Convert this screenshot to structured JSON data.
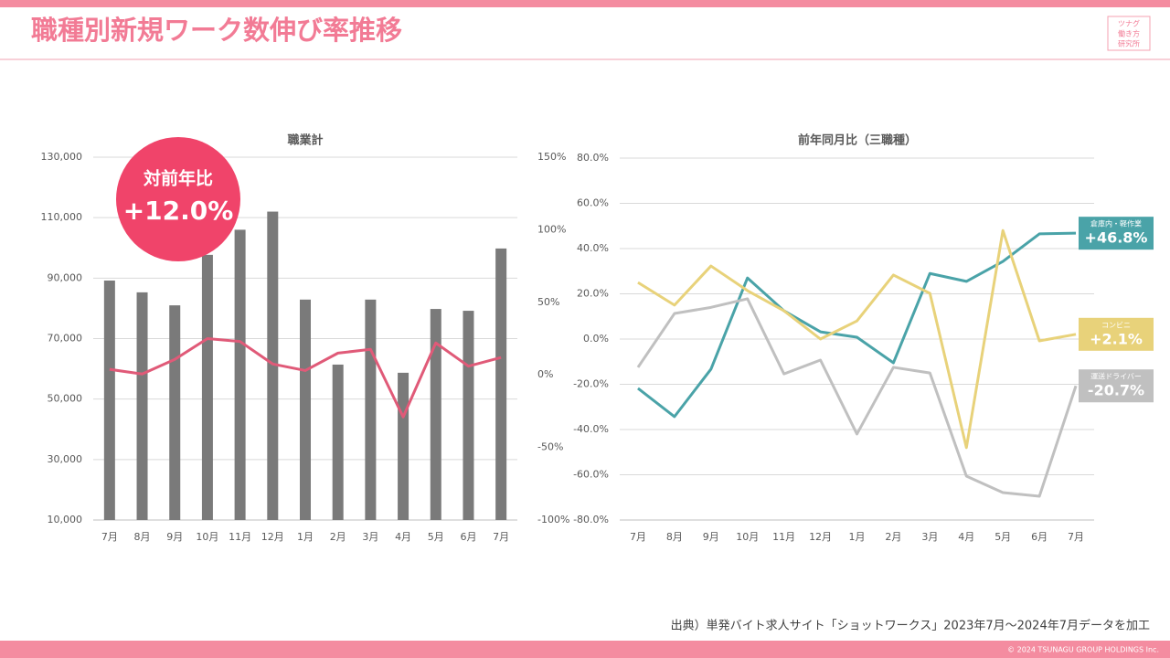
{
  "header": {
    "title": "職種別新規ワーク数伸び率推移",
    "logo": [
      "ツナグ",
      "働き方",
      "研究所"
    ]
  },
  "chart_data": [
    {
      "type": "bar",
      "title": "職業計",
      "categories": [
        "7月",
        "8月",
        "9月",
        "10月",
        "11月",
        "12月",
        "1月",
        "2月",
        "3月",
        "4月",
        "5月",
        "6月",
        "7月"
      ],
      "series": [
        {
          "type": "bar",
          "color": "#7a7a7a",
          "values": [
            89200,
            85300,
            81000,
            97700,
            106000,
            112000,
            82900,
            61400,
            82900,
            58700,
            79800,
            79200,
            99800
          ]
        },
        {
          "type": "line",
          "axis": "y2",
          "color": "#e05a78",
          "values": [
            3.8,
            0.6,
            10.7,
            25,
            23,
            7.5,
            3,
            15,
            17.6,
            -29,
            22,
            6,
            12
          ]
        }
      ],
      "ylim": [
        10000,
        130000
      ],
      "yticks": [
        {
          "value": 10000,
          "label": "10,000"
        },
        {
          "value": 30000,
          "label": "30,000"
        },
        {
          "value": 50000,
          "label": "50,000"
        },
        {
          "value": 70000,
          "label": "70,000"
        },
        {
          "value": 90000,
          "label": "90,000"
        },
        {
          "value": 110000,
          "label": "110,000"
        },
        {
          "value": 130000,
          "label": "130,000"
        }
      ],
      "y2lim": [
        -100,
        150
      ],
      "y2ticks": [
        {
          "value": -100,
          "label": "-100%"
        },
        {
          "value": -50,
          "label": "-50%"
        },
        {
          "value": 0,
          "label": "0%"
        },
        {
          "value": 50,
          "label": "50%"
        },
        {
          "value": 100,
          "label": "100%"
        },
        {
          "value": 150,
          "label": "150%"
        }
      ],
      "grid": true,
      "annotations": [
        "対前年比",
        "+12.0%"
      ]
    },
    {
      "type": "line",
      "title": "前年同月比（三職種）",
      "categories": [
        "7月",
        "8月",
        "9月",
        "10月",
        "11月",
        "12月",
        "1月",
        "2月",
        "3月",
        "4月",
        "5月",
        "6月",
        "7月"
      ],
      "series": [
        {
          "name": "倉庫内・軽作業",
          "color": "#4aa3a8",
          "values": [
            -21.8,
            -34.3,
            -13.3,
            27,
            12.5,
            3.2,
            0.8,
            -10.5,
            29,
            25.5,
            34.3,
            46.5,
            46.8
          ],
          "value_labels": [
            null,
            null,
            null,
            null,
            null,
            null,
            null,
            null,
            null,
            null,
            null,
            null,
            "+46.8%"
          ]
        },
        {
          "name": "コンビニ",
          "color": "#e8d27a",
          "values": [
            25,
            15,
            32.3,
            21.4,
            12.5,
            0,
            8,
            28.3,
            20.2,
            -48,
            48,
            -0.8,
            2.1
          ],
          "value_labels": [
            null,
            null,
            null,
            null,
            null,
            null,
            null,
            null,
            null,
            null,
            null,
            null,
            "+2.1%"
          ]
        },
        {
          "name": "運送ドライバー",
          "color": "#c0c0c0",
          "values": [
            -12.5,
            11.3,
            14,
            17.8,
            -15.4,
            -9.3,
            -42,
            -12.5,
            -15,
            -60.6,
            -67.9,
            -69.5,
            -20.7
          ],
          "value_labels": [
            null,
            null,
            null,
            null,
            null,
            null,
            null,
            null,
            null,
            null,
            null,
            null,
            "-20.7%"
          ]
        }
      ],
      "ylim": [
        -80,
        80
      ],
      "yticks": [
        {
          "value": -80,
          "label": "-80.0%"
        },
        {
          "value": -60,
          "label": "-60.0%"
        },
        {
          "value": -40,
          "label": "-40.0%"
        },
        {
          "value": -20,
          "label": "-20.0%"
        },
        {
          "value": 0,
          "label": "0.0%"
        },
        {
          "value": 20,
          "label": "20.0%"
        },
        {
          "value": 40,
          "label": "40.0%"
        },
        {
          "value": 60,
          "label": "60.0%"
        },
        {
          "value": 80,
          "label": "80.0%"
        }
      ],
      "grid": true
    }
  ],
  "source": "出典）単発バイト求人サイト「ショットワークス」2023年7月～2024年7月データを加工",
  "footer": "© 2024 TSUNAGU GROUP HOLDINGS Inc."
}
